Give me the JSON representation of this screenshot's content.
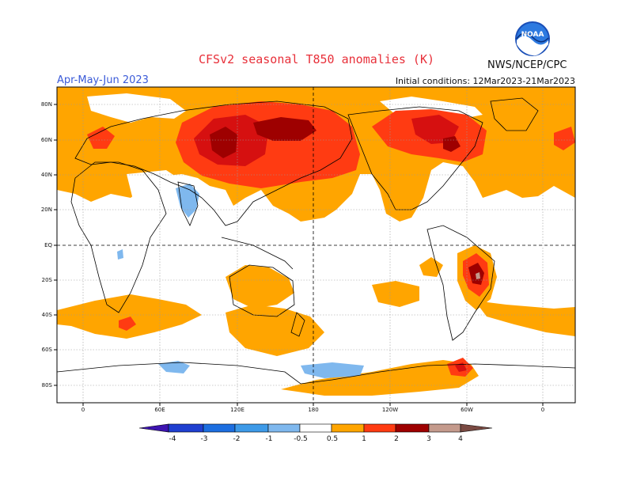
{
  "title": "CFSv2 seasonal T850 anomalies (K)",
  "season": "Apr-May-Jun 2023",
  "organization": "NWS/NCEP/CPC",
  "initial_conditions": "Initial conditions: 12Mar2023-21Mar2023",
  "logo_text": "NOAA",
  "lat_labels": [
    "80N",
    "60N",
    "40N",
    "20N",
    "EQ",
    "20S",
    "40S",
    "60S",
    "80S"
  ],
  "lon_labels": [
    "0",
    "60E",
    "120E",
    "180",
    "120W",
    "60W",
    "0"
  ],
  "colorbar": {
    "tick_labels": [
      "-4",
      "-3",
      "-2",
      "-1",
      "-0.5",
      "0.5",
      "1",
      "2",
      "3",
      "4"
    ],
    "colors": [
      "#3d14b0",
      "#1f3fd0",
      "#1c6ee0",
      "#3d9ae8",
      "#7fb8ee",
      "#ffffff",
      "#ffa500",
      "#ff3b12",
      "#d61010",
      "#9e0000",
      "#c49a8c",
      "#7a4a42"
    ]
  }
}
